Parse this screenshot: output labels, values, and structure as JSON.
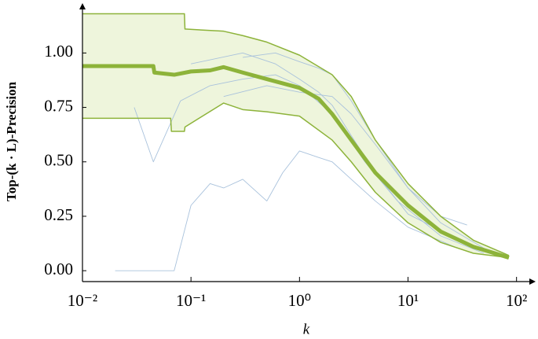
{
  "chart_data": {
    "type": "line",
    "x_label": "k",
    "y_label": "Top-(k · L)-Precision",
    "xscale": "log",
    "xlim": [
      0.01,
      150
    ],
    "ylim": [
      -0.05,
      1.2
    ],
    "xticks": [
      {
        "value": 0.01,
        "label": "10⁻²"
      },
      {
        "value": 0.1,
        "label": "10⁻¹"
      },
      {
        "value": 1,
        "label": "10⁰"
      },
      {
        "value": 10,
        "label": "10¹"
      },
      {
        "value": 100,
        "label": "10²"
      }
    ],
    "yticks": [
      {
        "value": 0,
        "label": "0.00"
      },
      {
        "value": 0.25,
        "label": "0.25"
      },
      {
        "value": 0.5,
        "label": "0.50"
      },
      {
        "value": 0.75,
        "label": "0.75"
      },
      {
        "value": 1,
        "label": "1.00"
      }
    ],
    "grid": false,
    "band": {
      "color": "#8db33a",
      "fill": "#eef5dc",
      "x": [
        0.01,
        0.065,
        0.066,
        0.087,
        0.088,
        0.2,
        0.3,
        0.5,
        1,
        2,
        3,
        5,
        10,
        20,
        40,
        85
      ],
      "upper": [
        1.18,
        1.18,
        1.18,
        1.18,
        1.11,
        1.1,
        1.08,
        1.05,
        0.99,
        0.9,
        0.8,
        0.6,
        0.4,
        0.25,
        0.14,
        0.07
      ],
      "lower": [
        0.7,
        0.7,
        0.64,
        0.64,
        0.66,
        0.77,
        0.74,
        0.73,
        0.71,
        0.6,
        0.5,
        0.36,
        0.22,
        0.13,
        0.08,
        0.06
      ]
    },
    "series": [
      {
        "color": "#a9c2dc",
        "line_width": 0.9,
        "x": [
          0.02,
          0.07,
          0.1,
          0.15,
          0.2,
          0.3,
          0.5,
          0.7,
          1,
          1.5,
          2,
          3,
          5,
          10,
          30
        ],
        "values": [
          0.0,
          0.0,
          0.3,
          0.4,
          0.38,
          0.42,
          0.32,
          0.45,
          0.55,
          0.52,
          0.5,
          0.42,
          0.32,
          0.2,
          0.1
        ]
      },
      {
        "color": "#a9c2dc",
        "line_width": 0.9,
        "x": [
          0.03,
          0.045,
          0.08,
          0.15,
          0.3,
          0.6,
          1,
          2,
          4,
          8,
          20,
          50
        ],
        "values": [
          0.75,
          0.5,
          0.78,
          0.85,
          0.88,
          0.9,
          0.85,
          0.72,
          0.5,
          0.32,
          0.16,
          0.08
        ]
      },
      {
        "color": "#a9c2dc",
        "line_width": 0.9,
        "x": [
          0.1,
          0.3,
          0.6,
          1,
          1.5,
          2,
          3,
          5,
          10,
          30
        ],
        "values": [
          0.95,
          1.0,
          0.95,
          0.88,
          0.82,
          0.76,
          0.62,
          0.45,
          0.26,
          0.14
        ]
      },
      {
        "color": "#a9c2dc",
        "line_width": 0.9,
        "x": [
          0.2,
          0.5,
          1,
          2,
          3,
          5,
          10,
          20,
          35
        ],
        "values": [
          0.8,
          0.85,
          0.82,
          0.8,
          0.72,
          0.58,
          0.38,
          0.25,
          0.21
        ]
      },
      {
        "color": "#a9c2dc",
        "line_width": 0.9,
        "x": [
          0.3,
          0.6,
          1,
          1.5,
          2,
          3,
          5,
          10,
          20,
          60
        ],
        "values": [
          0.98,
          1.0,
          0.96,
          0.93,
          0.9,
          0.78,
          0.6,
          0.38,
          0.22,
          0.08
        ]
      },
      {
        "color": "#8db33a",
        "line_width": 5,
        "x": [
          0.01,
          0.045,
          0.046,
          0.07,
          0.1,
          0.15,
          0.2,
          0.3,
          0.5,
          1,
          1.5,
          2,
          3,
          5,
          10,
          20,
          40,
          85
        ],
        "values": [
          0.94,
          0.94,
          0.91,
          0.9,
          0.915,
          0.92,
          0.935,
          0.91,
          0.88,
          0.84,
          0.79,
          0.72,
          0.6,
          0.45,
          0.3,
          0.18,
          0.11,
          0.06
        ]
      }
    ]
  }
}
